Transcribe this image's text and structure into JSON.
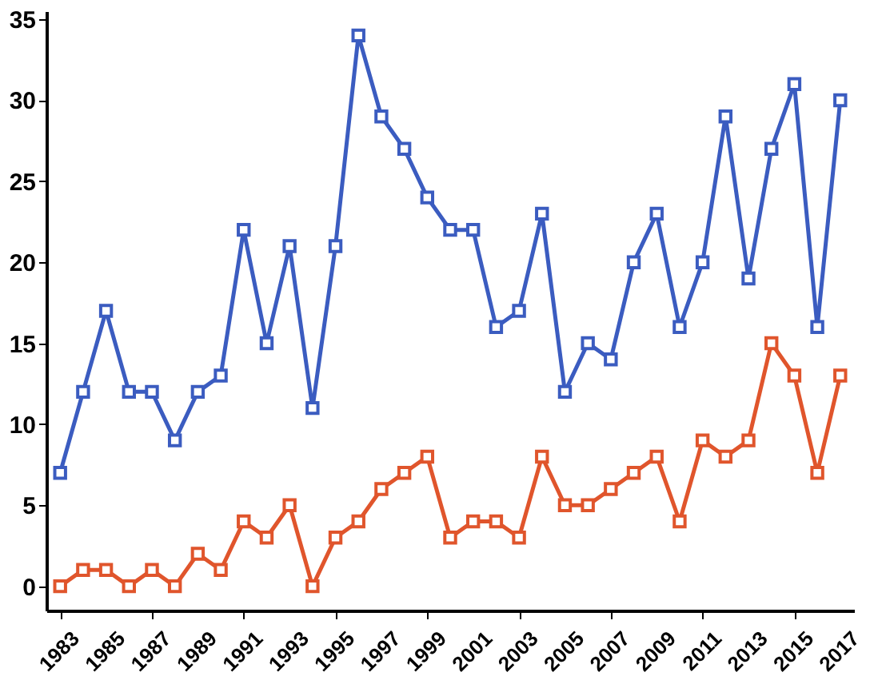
{
  "chart_data": {
    "type": "line",
    "x": [
      1983,
      1984,
      1985,
      1986,
      1987,
      1988,
      1989,
      1990,
      1991,
      1992,
      1993,
      1994,
      1995,
      1996,
      1997,
      1998,
      1999,
      2000,
      2001,
      2002,
      2003,
      2004,
      2005,
      2006,
      2007,
      2008,
      2009,
      2010,
      2011,
      2012,
      2013,
      2014,
      2015,
      2016,
      2017
    ],
    "series": [
      {
        "color": "#3b5cc0",
        "values": [
          7,
          12,
          17,
          12,
          12,
          9,
          12,
          13,
          22,
          15,
          21,
          11,
          21,
          34,
          29,
          27,
          24,
          22,
          22,
          16,
          17,
          23,
          12,
          15,
          14,
          20,
          23,
          16,
          20,
          29,
          19,
          27,
          31,
          16,
          30
        ]
      },
      {
        "color": "#e0552c",
        "values": [
          0,
          1,
          1,
          0,
          1,
          0,
          2,
          1,
          4,
          3,
          5,
          0,
          3,
          4,
          6,
          7,
          8,
          3,
          4,
          4,
          3,
          8,
          5,
          5,
          6,
          7,
          8,
          4,
          9,
          8,
          9,
          15,
          13,
          7,
          13
        ]
      }
    ],
    "xlim": [
      1982.4,
      2017.6
    ],
    "xticks": [
      1983,
      1985,
      1987,
      1989,
      1991,
      1993,
      1995,
      1997,
      1999,
      2001,
      2003,
      2005,
      2007,
      2009,
      2011,
      2013,
      2015,
      2017
    ],
    "ylim": [
      -1.5,
      35.5
    ],
    "yticks": [
      0,
      5,
      10,
      15,
      20,
      25,
      30,
      35
    ],
    "grid": false,
    "legend": false,
    "marker": "square",
    "line_style": "solid"
  }
}
